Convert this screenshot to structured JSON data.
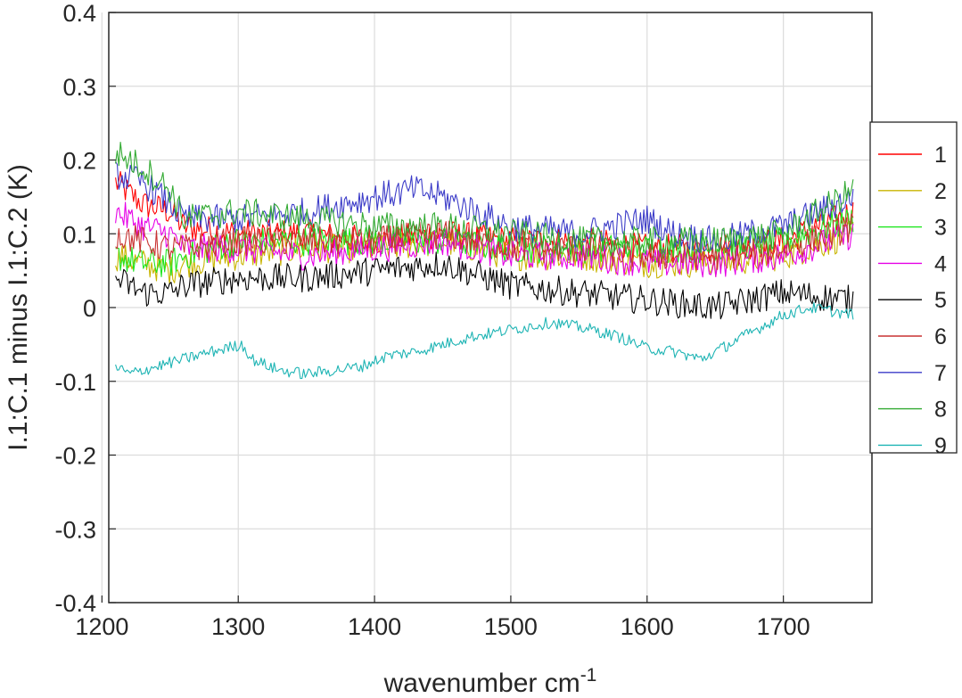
{
  "chart_data": {
    "type": "line",
    "title": "",
    "xlabel": "wavenumber cm",
    "xlabel_superscript": "-1",
    "ylabel": "I.1:C.1 minus I.1:C.2 (K)",
    "xlim": [
      1205,
      1765
    ],
    "ylim": [
      -0.4,
      0.4
    ],
    "xticks": [
      1200,
      1300,
      1400,
      1500,
      1600,
      1700
    ],
    "xtick_labels": [
      "1200",
      "1300",
      "1400",
      "1500",
      "1600",
      "1700"
    ],
    "yticks": [
      -0.4,
      -0.3,
      -0.2,
      -0.1,
      0,
      0.1,
      0.2,
      0.3,
      0.4
    ],
    "ytick_labels": [
      "-0.4",
      "-0.3",
      "-0.2",
      "-0.1",
      "0",
      "0.1",
      "0.2",
      "0.3",
      "0.4"
    ],
    "grid": true,
    "legend_position": "right",
    "x_range": [
      1210,
      1752
    ],
    "series": [
      {
        "name": "1",
        "color": "#ff0000",
        "values": [
          [
            1210,
            0.17
          ],
          [
            1230,
            0.14
          ],
          [
            1250,
            0.13
          ],
          [
            1260,
            0.11
          ],
          [
            1300,
            0.1
          ],
          [
            1350,
            0.1
          ],
          [
            1400,
            0.09
          ],
          [
            1450,
            0.1
          ],
          [
            1500,
            0.09
          ],
          [
            1550,
            0.09
          ],
          [
            1600,
            0.08
          ],
          [
            1650,
            0.08
          ],
          [
            1700,
            0.09
          ],
          [
            1752,
            0.13
          ]
        ]
      },
      {
        "name": "2",
        "color": "#c8b400",
        "values": [
          [
            1210,
            0.07
          ],
          [
            1230,
            0.06
          ],
          [
            1250,
            0.05
          ],
          [
            1260,
            0.06
          ],
          [
            1300,
            0.07
          ],
          [
            1350,
            0.08
          ],
          [
            1400,
            0.08
          ],
          [
            1450,
            0.09
          ],
          [
            1500,
            0.07
          ],
          [
            1550,
            0.07
          ],
          [
            1600,
            0.06
          ],
          [
            1650,
            0.06
          ],
          [
            1700,
            0.07
          ],
          [
            1752,
            0.1
          ]
        ]
      },
      {
        "name": "3",
        "color": "#1ee61e",
        "values": [
          [
            1210,
            0.07
          ],
          [
            1230,
            0.06
          ],
          [
            1250,
            0.06
          ],
          [
            1260,
            0.07
          ],
          [
            1300,
            0.09
          ],
          [
            1350,
            0.09
          ],
          [
            1400,
            0.09
          ],
          [
            1450,
            0.09
          ],
          [
            1500,
            0.08
          ],
          [
            1550,
            0.08
          ],
          [
            1600,
            0.08
          ],
          [
            1650,
            0.08
          ],
          [
            1700,
            0.09
          ],
          [
            1752,
            0.12
          ]
        ]
      },
      {
        "name": "4",
        "color": "#e600e6",
        "values": [
          [
            1210,
            0.13
          ],
          [
            1230,
            0.11
          ],
          [
            1250,
            0.1
          ],
          [
            1260,
            0.08
          ],
          [
            1300,
            0.08
          ],
          [
            1350,
            0.07
          ],
          [
            1400,
            0.08
          ],
          [
            1450,
            0.09
          ],
          [
            1500,
            0.07
          ],
          [
            1550,
            0.07
          ],
          [
            1600,
            0.06
          ],
          [
            1650,
            0.06
          ],
          [
            1700,
            0.07
          ],
          [
            1752,
            0.1
          ]
        ]
      },
      {
        "name": "5",
        "color": "#000000",
        "values": [
          [
            1210,
            0.04
          ],
          [
            1230,
            0.02
          ],
          [
            1250,
            0.02
          ],
          [
            1260,
            0.03
          ],
          [
            1300,
            0.04
          ],
          [
            1350,
            0.04
          ],
          [
            1400,
            0.05
          ],
          [
            1450,
            0.06
          ],
          [
            1500,
            0.03
          ],
          [
            1550,
            0.02
          ],
          [
            1600,
            0.01
          ],
          [
            1650,
            0.0
          ],
          [
            1700,
            0.02
          ],
          [
            1752,
            0.01
          ]
        ]
      },
      {
        "name": "6",
        "color": "#c83232",
        "values": [
          [
            1210,
            0.1
          ],
          [
            1230,
            0.09
          ],
          [
            1250,
            0.08
          ],
          [
            1260,
            0.08
          ],
          [
            1300,
            0.09
          ],
          [
            1350,
            0.09
          ],
          [
            1400,
            0.09
          ],
          [
            1450,
            0.1
          ],
          [
            1500,
            0.08
          ],
          [
            1550,
            0.08
          ],
          [
            1600,
            0.07
          ],
          [
            1650,
            0.07
          ],
          [
            1700,
            0.08
          ],
          [
            1752,
            0.11
          ]
        ]
      },
      {
        "name": "7",
        "color": "#3c3cc8",
        "values": [
          [
            1210,
            0.18
          ],
          [
            1230,
            0.17
          ],
          [
            1250,
            0.14
          ],
          [
            1260,
            0.12
          ],
          [
            1300,
            0.12
          ],
          [
            1350,
            0.13
          ],
          [
            1400,
            0.15
          ],
          [
            1430,
            0.16
          ],
          [
            1450,
            0.15
          ],
          [
            1500,
            0.11
          ],
          [
            1550,
            0.1
          ],
          [
            1600,
            0.12
          ],
          [
            1620,
            0.1
          ],
          [
            1650,
            0.09
          ],
          [
            1700,
            0.11
          ],
          [
            1752,
            0.15
          ]
        ]
      },
      {
        "name": "8",
        "color": "#32aa32",
        "values": [
          [
            1210,
            0.21
          ],
          [
            1230,
            0.19
          ],
          [
            1250,
            0.16
          ],
          [
            1260,
            0.12
          ],
          [
            1300,
            0.13
          ],
          [
            1350,
            0.12
          ],
          [
            1400,
            0.11
          ],
          [
            1450,
            0.11
          ],
          [
            1500,
            0.1
          ],
          [
            1550,
            0.09
          ],
          [
            1600,
            0.09
          ],
          [
            1650,
            0.09
          ],
          [
            1700,
            0.1
          ],
          [
            1752,
            0.16
          ]
        ]
      },
      {
        "name": "9",
        "color": "#1eb4b4",
        "values": [
          [
            1210,
            -0.08
          ],
          [
            1220,
            -0.09
          ],
          [
            1240,
            -0.08
          ],
          [
            1260,
            -0.07
          ],
          [
            1280,
            -0.06
          ],
          [
            1303,
            -0.05
          ],
          [
            1310,
            -0.07
          ],
          [
            1330,
            -0.085
          ],
          [
            1350,
            -0.09
          ],
          [
            1370,
            -0.085
          ],
          [
            1390,
            -0.08
          ],
          [
            1410,
            -0.065
          ],
          [
            1430,
            -0.06
          ],
          [
            1450,
            -0.05
          ],
          [
            1470,
            -0.04
          ],
          [
            1500,
            -0.03
          ],
          [
            1530,
            -0.02
          ],
          [
            1560,
            -0.03
          ],
          [
            1580,
            -0.04
          ],
          [
            1600,
            -0.055
          ],
          [
            1620,
            -0.06
          ],
          [
            1640,
            -0.07
          ],
          [
            1660,
            -0.05
          ],
          [
            1680,
            -0.03
          ],
          [
            1700,
            -0.01
          ],
          [
            1720,
            0.0
          ],
          [
            1752,
            -0.01
          ]
        ]
      }
    ]
  }
}
